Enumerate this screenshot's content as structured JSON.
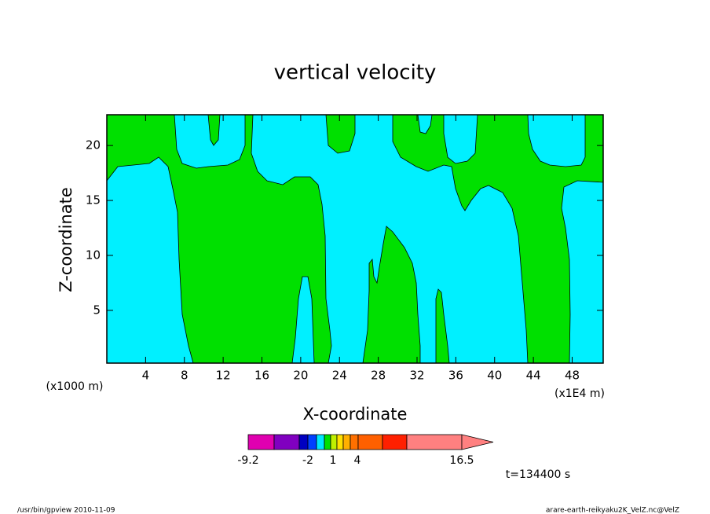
{
  "chart_data": {
    "type": "contour",
    "title": "vertical velocity",
    "x_label": "X-coordinate",
    "y_label": "Z-coordinate",
    "x_unit": "(x1000 m)",
    "x_scale_note": "(x1E4 m)",
    "xlim": [
      0,
      51.2
    ],
    "ylim": [
      0.2,
      22.8
    ],
    "xticks": [
      4,
      8,
      12,
      16,
      20,
      24,
      28,
      32,
      36,
      40,
      44,
      48
    ],
    "yticks": [
      5,
      10,
      15,
      20
    ],
    "colors": {
      "positive": "#00e000",
      "negative": "#00f0ff"
    },
    "colorbar": {
      "colors": [
        "#e000b0",
        "#8000c0",
        "#0000c0",
        "#0040ff",
        "#00e8ff",
        "#00e000",
        "#c0f000",
        "#ffe000",
        "#ffb000",
        "#ff7000",
        "#ff6000",
        "#ff2000",
        "#ff8080"
      ],
      "labels": [
        -9.2,
        -2,
        1,
        4,
        16.5
      ]
    },
    "time_label": "t=134400 s",
    "footer_left": "/usr/bin/gpview   2010-11-09",
    "footer_right": "arare-earth-reikyaku2K_VelZ.nc@VelZ"
  }
}
